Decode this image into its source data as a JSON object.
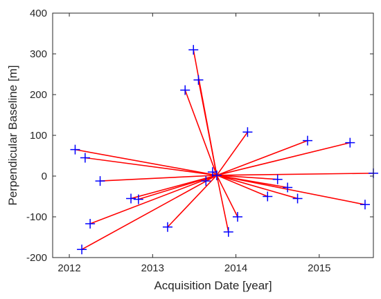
{
  "chart_data": {
    "type": "scatter",
    "title": "",
    "xlabel": "Acquisition Date [year]",
    "ylabel": "Perpendicular Baseline [m]",
    "xlim": [
      2011.8,
      2015.65
    ],
    "ylim": [
      -200,
      400
    ],
    "xticks": [
      2012,
      2013,
      2014,
      2015
    ],
    "yticks": [
      -200,
      -100,
      0,
      100,
      200,
      300,
      400
    ],
    "xtick_labels": [
      "2012",
      "2013",
      "2014",
      "2015"
    ],
    "ytick_labels": [
      "-200",
      "-100",
      "0",
      "100",
      "200",
      "300",
      "400"
    ],
    "grid": false,
    "legend": "none",
    "marker": "plus",
    "point_color": "#0000ff",
    "line_color": "#ff0000",
    "master": {
      "x": 2013.77,
      "y": 2
    },
    "points": [
      {
        "x": 2012.07,
        "y": 65
      },
      {
        "x": 2012.19,
        "y": 45
      },
      {
        "x": 2012.15,
        "y": -180
      },
      {
        "x": 2012.25,
        "y": -117
      },
      {
        "x": 2012.37,
        "y": -12
      },
      {
        "x": 2012.74,
        "y": -55
      },
      {
        "x": 2012.83,
        "y": -57
      },
      {
        "x": 2013.18,
        "y": -125
      },
      {
        "x": 2013.39,
        "y": 211
      },
      {
        "x": 2013.49,
        "y": 310
      },
      {
        "x": 2013.55,
        "y": 236
      },
      {
        "x": 2013.64,
        "y": -12
      },
      {
        "x": 2013.72,
        "y": 10
      },
      {
        "x": 2013.91,
        "y": -137
      },
      {
        "x": 2014.02,
        "y": -100
      },
      {
        "x": 2014.14,
        "y": 108
      },
      {
        "x": 2014.38,
        "y": -50
      },
      {
        "x": 2014.5,
        "y": -8
      },
      {
        "x": 2014.62,
        "y": -28
      },
      {
        "x": 2014.74,
        "y": -55
      },
      {
        "x": 2014.86,
        "y": 87
      },
      {
        "x": 2015.37,
        "y": 82
      },
      {
        "x": 2015.55,
        "y": -70
      },
      {
        "x": 2015.65,
        "y": 7
      }
    ]
  }
}
